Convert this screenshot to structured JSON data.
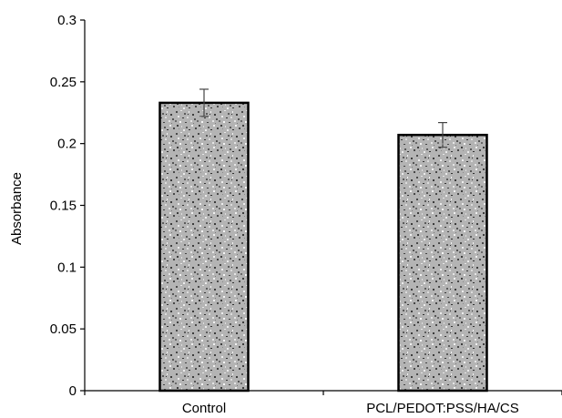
{
  "chart_data": {
    "type": "bar",
    "title": "",
    "xlabel": "",
    "ylabel": "Absorbance",
    "ylim": [
      0,
      0.3
    ],
    "yticks": [
      "0",
      "0.05",
      "0.1",
      "0.15",
      "0.2",
      "0.25",
      "0.3"
    ],
    "categories": [
      "Control",
      "PCL/PEDOT:PSS/HA/CS"
    ],
    "values": [
      0.233,
      0.207
    ],
    "errors": [
      0.011,
      0.01
    ],
    "grid": false,
    "legend": "none",
    "colors": {
      "bar_fill_base": "#b4b4b4",
      "bar_outline": "#000000",
      "axis": "#000000",
      "error_bar": "#444444"
    }
  }
}
